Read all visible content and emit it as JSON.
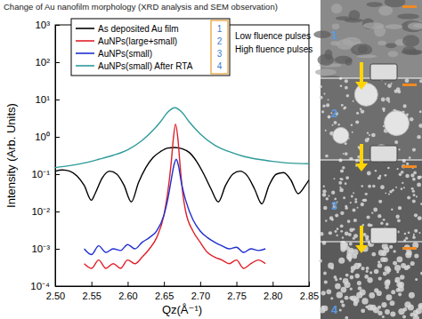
{
  "chart_data": {
    "type": "line",
    "title": "Change of Au nanofilm morphology (XRD analysis and SEM observation)",
    "x_label": "Qz(Å⁻¹)",
    "y_label": "Intensity (Arb. Units)",
    "log": "y",
    "grid": false,
    "legend": "upper left",
    "xlim": [
      2.5,
      2.85
    ],
    "ylim": [
      0.0001,
      1000
    ],
    "xticks": [
      {
        "value": 2.5,
        "label": "2.50"
      },
      2.55,
      {
        "value": 2.6,
        "label": "2.60"
      },
      2.65,
      {
        "value": 2.7,
        "label": "2.70"
      },
      2.75,
      {
        "value": 2.8,
        "label": "2.80"
      },
      2.85
    ],
    "yticks": [
      {
        "value": 0.0001,
        "label": "10⁻⁴"
      },
      {
        "value": 0.001,
        "label": "10⁻³"
      },
      {
        "value": 0.01,
        "label": "10⁻²"
      },
      {
        "value": 0.1,
        "label": "10⁻¹"
      },
      {
        "value": 1,
        "label": "10⁰"
      },
      {
        "value": 10,
        "label": "10¹"
      },
      {
        "value": 100,
        "label": "10²"
      },
      {
        "value": 1000,
        "label": "10³"
      }
    ],
    "legend_numbers": [
      "1",
      "2",
      "3",
      "4"
    ],
    "annotations": [
      "Low fluence pulses",
      "High fluence pulses"
    ],
    "series": [
      {
        "name": "As deposited Au film",
        "color": "#000000",
        "x": [
          2.5,
          2.51,
          2.52,
          2.53,
          2.54,
          2.55,
          2.555,
          2.565,
          2.575,
          2.585,
          2.595,
          2.605,
          2.615,
          2.625,
          2.635,
          2.645,
          2.655,
          2.665,
          2.675,
          2.685,
          2.695,
          2.705,
          2.715,
          2.725,
          2.735,
          2.745,
          2.755,
          2.765,
          2.775,
          2.785,
          2.795,
          2.805,
          2.815,
          2.825,
          2.835,
          2.845,
          2.85
        ],
        "values": [
          0.12,
          0.13,
          0.12,
          0.09,
          0.05,
          0.02,
          0.03,
          0.08,
          0.12,
          0.1,
          0.05,
          0.018,
          0.06,
          0.15,
          0.28,
          0.4,
          0.5,
          0.52,
          0.48,
          0.38,
          0.22,
          0.1,
          0.04,
          0.018,
          0.05,
          0.1,
          0.12,
          0.09,
          0.04,
          0.016,
          0.05,
          0.1,
          0.11,
          0.07,
          0.03,
          0.05,
          0.07
        ]
      },
      {
        "name": "AuNPs(large+small)",
        "color": "#e0202a",
        "x": [
          2.54,
          2.55,
          2.56,
          2.57,
          2.58,
          2.59,
          2.6,
          2.61,
          2.62,
          2.63,
          2.64,
          2.65,
          2.655,
          2.66,
          2.663,
          2.666,
          2.669,
          2.672,
          2.676,
          2.68,
          2.69,
          2.7,
          2.71,
          2.72,
          2.73,
          2.74,
          2.75,
          2.76,
          2.77,
          2.78,
          2.79
        ],
        "values": [
          0.0004,
          0.0003,
          0.0005,
          0.0003,
          0.0004,
          0.0003,
          0.0005,
          0.0004,
          0.0006,
          0.001,
          0.002,
          0.008,
          0.03,
          0.2,
          0.9,
          2.2,
          1.0,
          0.2,
          0.03,
          0.01,
          0.003,
          0.0015,
          0.0008,
          0.0006,
          0.0005,
          0.0004,
          0.0005,
          0.0003,
          0.0004,
          0.0005,
          0.0004
        ]
      },
      {
        "name": "AuNPs(small)",
        "color": "#1f2fd0",
        "x": [
          2.54,
          2.55,
          2.56,
          2.57,
          2.58,
          2.59,
          2.6,
          2.61,
          2.62,
          2.63,
          2.64,
          2.65,
          2.655,
          2.66,
          2.664,
          2.667,
          2.67,
          2.674,
          2.68,
          2.69,
          2.7,
          2.71,
          2.72,
          2.73,
          2.74,
          2.75,
          2.76,
          2.77,
          2.78,
          2.79
        ],
        "values": [
          0.001,
          0.0007,
          0.0012,
          0.0008,
          0.001,
          0.0009,
          0.0013,
          0.001,
          0.0015,
          0.002,
          0.003,
          0.008,
          0.02,
          0.07,
          0.18,
          0.25,
          0.17,
          0.06,
          0.02,
          0.006,
          0.003,
          0.002,
          0.0015,
          0.0012,
          0.001,
          0.0011,
          0.0008,
          0.001,
          0.0009,
          0.001
        ]
      },
      {
        "name": "AuNPs(small) After RTA",
        "color": "#2e9a9a",
        "x": [
          2.5,
          2.52,
          2.54,
          2.56,
          2.58,
          2.6,
          2.62,
          2.635,
          2.645,
          2.655,
          2.665,
          2.675,
          2.685,
          2.7,
          2.72,
          2.74,
          2.76,
          2.78,
          2.8,
          2.82,
          2.85
        ],
        "values": [
          0.15,
          0.17,
          0.2,
          0.25,
          0.32,
          0.45,
          0.8,
          1.5,
          2.5,
          4.5,
          6,
          4.5,
          2.5,
          1.2,
          0.6,
          0.4,
          0.3,
          0.25,
          0.22,
          0.2,
          0.19
        ]
      }
    ]
  },
  "sem_panels": {
    "labels": [
      "1",
      "2",
      "3",
      "4"
    ]
  }
}
